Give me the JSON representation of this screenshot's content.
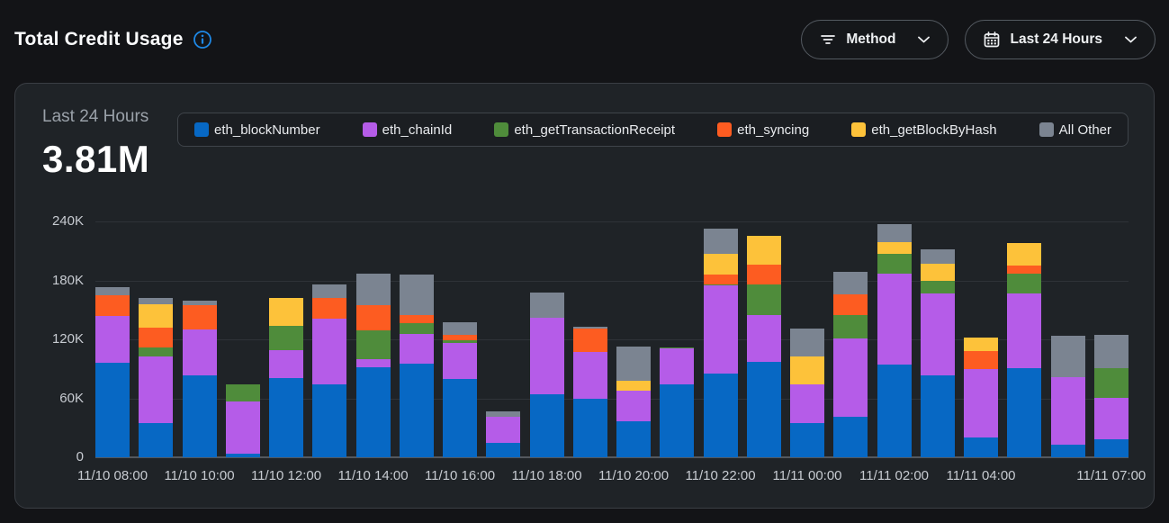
{
  "header": {
    "title": "Total Credit Usage",
    "filters": {
      "method": {
        "label": "Method"
      },
      "range": {
        "label": "Last 24 Hours"
      }
    }
  },
  "summary": {
    "period_label": "Last 24 Hours",
    "total_value": "3.81M"
  },
  "colors": {
    "accent_info": "#1e88e5",
    "card_bg": "#1f2327",
    "page_bg": "#131417",
    "gridline": "#2f3338",
    "axis_line": "#54585e",
    "axis_text": "#c7cbd1"
  },
  "chart_data": {
    "type": "bar",
    "stacked": true,
    "title": "Total Credit Usage",
    "xlabel": "",
    "ylabel": "",
    "ylim": [
      0,
      240000
    ],
    "grid": true,
    "legend_position": "top",
    "yticks": [
      {
        "value": 0,
        "label": "0"
      },
      {
        "value": 60000,
        "label": "60K"
      },
      {
        "value": 120000,
        "label": "120K"
      },
      {
        "value": 180000,
        "label": "180K"
      },
      {
        "value": 240000,
        "label": "240K"
      }
    ],
    "categories": [
      "11/10 08:00",
      "11/10 09:00",
      "11/10 10:00",
      "11/10 11:00",
      "11/10 12:00",
      "11/10 13:00",
      "11/10 14:00",
      "11/10 15:00",
      "11/10 16:00",
      "11/10 17:00",
      "11/10 18:00",
      "11/10 19:00",
      "11/10 20:00",
      "11/10 21:00",
      "11/10 22:00",
      "11/10 23:00",
      "11/11 00:00",
      "11/11 01:00",
      "11/11 02:00",
      "11/11 03:00",
      "11/11 04:00",
      "11/11 05:00",
      "11/11 06:00",
      "11/11 07:00"
    ],
    "tick_labels": {
      "0": "11/10 08:00",
      "2": "11/10 10:00",
      "4": "11/10 12:00",
      "6": "11/10 14:00",
      "8": "11/10 16:00",
      "10": "11/10 18:00",
      "12": "11/10 20:00",
      "14": "11/10 22:00",
      "16": "11/11 00:00",
      "18": "11/11 02:00",
      "20": "11/11 04:00",
      "23": "11/11 07:00"
    },
    "series": [
      {
        "name": "eth_blockNumber",
        "color": "#0768c4",
        "values": [
          96000,
          35000,
          83000,
          4000,
          81000,
          74000,
          92000,
          95000,
          80000,
          15000,
          64000,
          60000,
          37000,
          74000,
          85000,
          97000,
          35000,
          41000,
          94000,
          83000,
          20000,
          91000,
          13000,
          18000
        ]
      },
      {
        "name": "eth_chainId",
        "color": "#b55ce8",
        "values": [
          48000,
          68000,
          47000,
          53000,
          28000,
          67000,
          8000,
          31000,
          36000,
          26000,
          78000,
          47000,
          31000,
          37000,
          90000,
          48000,
          39000,
          80000,
          93000,
          84000,
          70000,
          76000,
          69000,
          43000
        ]
      },
      {
        "name": "eth_getTransactionReceipt",
        "color": "#4f8c3b",
        "values": [
          0,
          9000,
          0,
          17000,
          25000,
          0,
          29000,
          11000,
          3000,
          0,
          0,
          0,
          0,
          1000,
          1000,
          31000,
          0,
          24000,
          20000,
          13000,
          0,
          20000,
          0,
          30000
        ]
      },
      {
        "name": "eth_syncing",
        "color": "#fd5c21",
        "values": [
          21000,
          20000,
          25000,
          0,
          0,
          21000,
          26000,
          8000,
          6000,
          0,
          0,
          24000,
          0,
          0,
          10000,
          20000,
          0,
          21000,
          0,
          0,
          18000,
          8000,
          0,
          0
        ]
      },
      {
        "name": "eth_getBlockByHash",
        "color": "#fdc23a",
        "values": [
          0,
          24000,
          0,
          0,
          28000,
          0,
          0,
          0,
          0,
          0,
          0,
          0,
          10000,
          0,
          21000,
          29000,
          29000,
          0,
          12000,
          17000,
          14000,
          23000,
          0,
          0
        ]
      },
      {
        "name": "All Other",
        "color": "#7b8491",
        "values": [
          8000,
          6000,
          4000,
          0,
          0,
          14000,
          32000,
          41000,
          12000,
          6000,
          26000,
          2000,
          35000,
          0,
          26000,
          0,
          28000,
          23000,
          18000,
          15000,
          0,
          0,
          42000,
          34000
        ]
      }
    ]
  }
}
